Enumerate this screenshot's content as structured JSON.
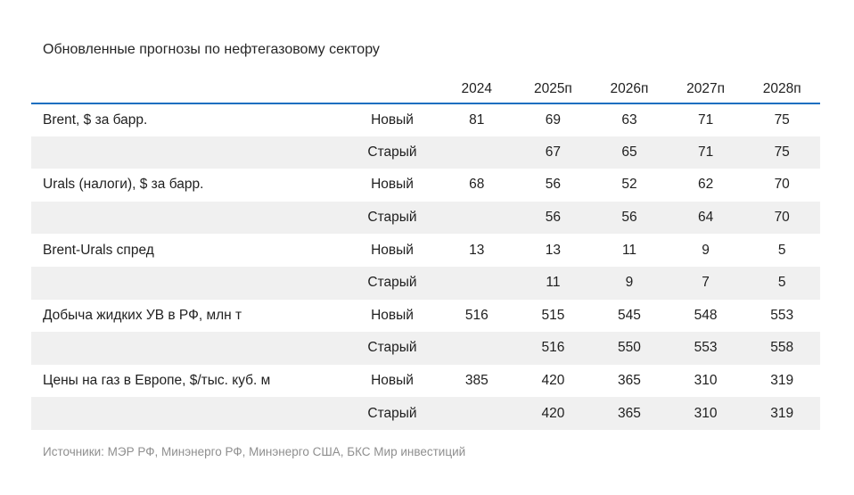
{
  "title": "Обновленные прогнозы по нефтегазовому сектору",
  "source_note": "Источники: МЭР РФ, Минэнерго РФ, Минэнерго США, БКС Мир инвестиций",
  "colors": {
    "accent_blue": "#1b6fc0",
    "stripe_gray": "#f0f0f0",
    "text": "#1f1f1f",
    "muted_gray": "#8f8f8f"
  },
  "chart_data": {
    "type": "table",
    "title": "Обновленные прогнозы по нефтегазовому сектору",
    "year_columns": [
      "2024",
      "2025п",
      "2026п",
      "2027п",
      "2028п"
    ],
    "rows": [
      {
        "metric": "Brent, $ за барр.",
        "scenario": "Новый",
        "values": [
          81,
          69,
          63,
          71,
          75
        ]
      },
      {
        "metric": "",
        "scenario": "Старый",
        "values": [
          null,
          67,
          65,
          71,
          75
        ]
      },
      {
        "metric": "Urals (налоги), $ за барр.",
        "scenario": "Новый",
        "values": [
          68,
          56,
          52,
          62,
          70
        ]
      },
      {
        "metric": "",
        "scenario": "Старый",
        "values": [
          null,
          56,
          56,
          64,
          70
        ]
      },
      {
        "metric": "Brent-Urals спред",
        "scenario": "Новый",
        "values": [
          13,
          13,
          11,
          9,
          5
        ]
      },
      {
        "metric": "",
        "scenario": "Старый",
        "values": [
          null,
          11,
          9,
          7,
          5
        ]
      },
      {
        "metric": "Добыча жидких УВ в РФ, млн т",
        "scenario": "Новый",
        "values": [
          516,
          515,
          545,
          548,
          553
        ]
      },
      {
        "metric": "",
        "scenario": "Старый",
        "values": [
          null,
          516,
          550,
          553,
          558
        ]
      },
      {
        "metric": "Цены на газ в Европе, $/тыс. куб. м",
        "scenario": "Новый",
        "values": [
          385,
          420,
          365,
          310,
          319
        ]
      },
      {
        "metric": "",
        "scenario": "Старый",
        "values": [
          null,
          420,
          365,
          310,
          319
        ]
      }
    ],
    "source": "Источники: МЭР РФ, Минэнерго РФ, Минэнерго США, БКС Мир инвестиций",
    "layout": {
      "grid": "off",
      "stripe_rows": "alternating",
      "header_underline": "accent_blue"
    }
  }
}
